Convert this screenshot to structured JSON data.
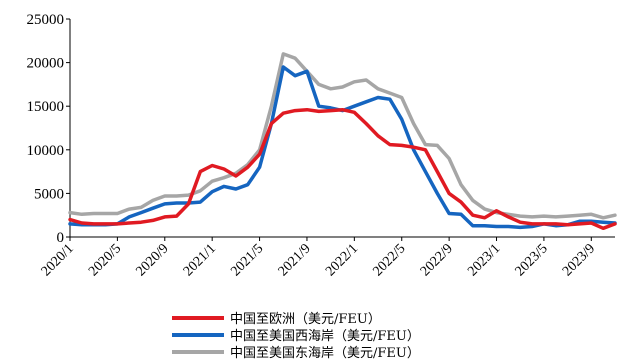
{
  "chart_data": {
    "type": "line",
    "title": "",
    "xlabel": "",
    "ylabel": "",
    "ylim": [
      0,
      25000
    ],
    "y_ticks": [
      "0",
      "5000",
      "10000",
      "15000",
      "20000",
      "25000"
    ],
    "x_ticks": [
      "2020/1",
      "2020/5",
      "2020/9",
      "2021/1",
      "2021/5",
      "2021/9",
      "2022/1",
      "2022/5",
      "2022/9",
      "2023/1",
      "2023/5",
      "2023/9"
    ],
    "grid": false,
    "legend_position": "bottom",
    "x": [
      "2020/1",
      "2020/2",
      "2020/3",
      "2020/4",
      "2020/5",
      "2020/6",
      "2020/7",
      "2020/8",
      "2020/9",
      "2020/10",
      "2020/11",
      "2020/12",
      "2021/1",
      "2021/2",
      "2021/3",
      "2021/4",
      "2021/5",
      "2021/6",
      "2021/7",
      "2021/8",
      "2021/9",
      "2021/10",
      "2021/11",
      "2021/12",
      "2022/1",
      "2022/2",
      "2022/3",
      "2022/4",
      "2022/5",
      "2022/6",
      "2022/7",
      "2022/8",
      "2022/9",
      "2022/10",
      "2022/11",
      "2022/12",
      "2023/1",
      "2023/2",
      "2023/3",
      "2023/4",
      "2023/5",
      "2023/6",
      "2023/7",
      "2023/8",
      "2023/9",
      "2023/10",
      "2023/11"
    ],
    "series": [
      {
        "name": "中国至欧洲（美元/FEU）",
        "color": "#e01a22",
        "values": [
          2000,
          1600,
          1500,
          1500,
          1500,
          1600,
          1700,
          1900,
          2300,
          2400,
          3800,
          7500,
          8200,
          7800,
          7000,
          8000,
          9500,
          13000,
          14200,
          14500,
          14600,
          14400,
          14500,
          14600,
          14300,
          13000,
          11600,
          10600,
          10500,
          10300,
          10000,
          7500,
          5000,
          4000,
          2500,
          2200,
          3000,
          2300,
          1700,
          1500,
          1500,
          1500,
          1400,
          1500,
          1600,
          1000,
          1500
        ]
      },
      {
        "name": "中国至美国西海岸（美元/FEU）",
        "color": "#1565c0",
        "values": [
          1500,
          1400,
          1400,
          1400,
          1500,
          2300,
          2800,
          3300,
          3800,
          3900,
          3900,
          4000,
          5200,
          5800,
          5500,
          6000,
          8000,
          13000,
          19500,
          18500,
          19000,
          15000,
          14800,
          14500,
          15000,
          15500,
          16000,
          15800,
          13500,
          10000,
          7500,
          5000,
          2700,
          2600,
          1300,
          1300,
          1200,
          1200,
          1100,
          1200,
          1500,
          1300,
          1400,
          1800,
          1800,
          1700,
          1600
        ]
      },
      {
        "name": "中国至美国东海岸（美元/FEU）",
        "color": "#a6a6a6",
        "values": [
          2800,
          2600,
          2700,
          2700,
          2700,
          3200,
          3400,
          4200,
          4700,
          4700,
          4800,
          5300,
          6400,
          6800,
          7300,
          8300,
          10000,
          15000,
          21000,
          20500,
          19000,
          17500,
          17000,
          17200,
          17800,
          18000,
          17000,
          16500,
          16000,
          13000,
          10600,
          10500,
          9000,
          6000,
          4200,
          3200,
          2800,
          2600,
          2400,
          2300,
          2400,
          2300,
          2400,
          2500,
          2600,
          2200,
          2500
        ]
      }
    ]
  }
}
